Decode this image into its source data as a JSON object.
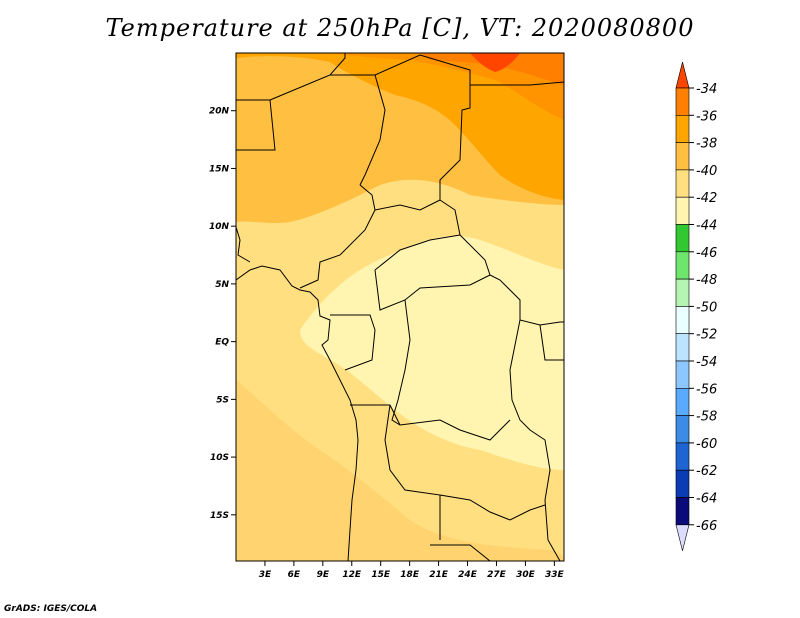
{
  "title": "Temperature at 250hPa [C], VT: 2020080800",
  "credit": "GrADS: IGES/COLA",
  "map": {
    "lon_range": [
      0,
      34
    ],
    "lat_range": [
      -19,
      25
    ],
    "lon_ticks": [
      {
        "value": 3,
        "label": "3E"
      },
      {
        "value": 6,
        "label": "6E"
      },
      {
        "value": 9,
        "label": "9E"
      },
      {
        "value": 12,
        "label": "12E"
      },
      {
        "value": 15,
        "label": "15E"
      },
      {
        "value": 18,
        "label": "18E"
      },
      {
        "value": 21,
        "label": "21E"
      },
      {
        "value": 24,
        "label": "24E"
      },
      {
        "value": 27,
        "label": "27E"
      },
      {
        "value": 30,
        "label": "30E"
      },
      {
        "value": 33,
        "label": "33E"
      }
    ],
    "lat_ticks": [
      {
        "value": 20,
        "label": "20N"
      },
      {
        "value": 15,
        "label": "15N"
      },
      {
        "value": 10,
        "label": "10N"
      },
      {
        "value": 5,
        "label": "5N"
      },
      {
        "value": 0,
        "label": "EQ"
      },
      {
        "value": -5,
        "label": "5S"
      },
      {
        "value": -10,
        "label": "10S"
      },
      {
        "value": -15,
        "label": "15S"
      }
    ]
  },
  "colorbar": {
    "levels": [
      "-34",
      "-36",
      "-38",
      "-40",
      "-42",
      "-44",
      "-46",
      "-48",
      "-50",
      "-52",
      "-54",
      "-56",
      "-58",
      "-60",
      "-62",
      "-64",
      "-66"
    ],
    "colors": [
      "#ff4500",
      "#ff7f00",
      "#ffa500",
      "#ffbf40",
      "#ffdf80",
      "#fff5b0",
      "#32c832",
      "#6ee66e",
      "#b4f5b4",
      "#eaffff",
      "#bde4ff",
      "#8cc8ff",
      "#5aaaff",
      "#3c8ce6",
      "#1e64d2",
      "#0a3cb4",
      "#0a0a78",
      "#dcdcff"
    ]
  }
}
